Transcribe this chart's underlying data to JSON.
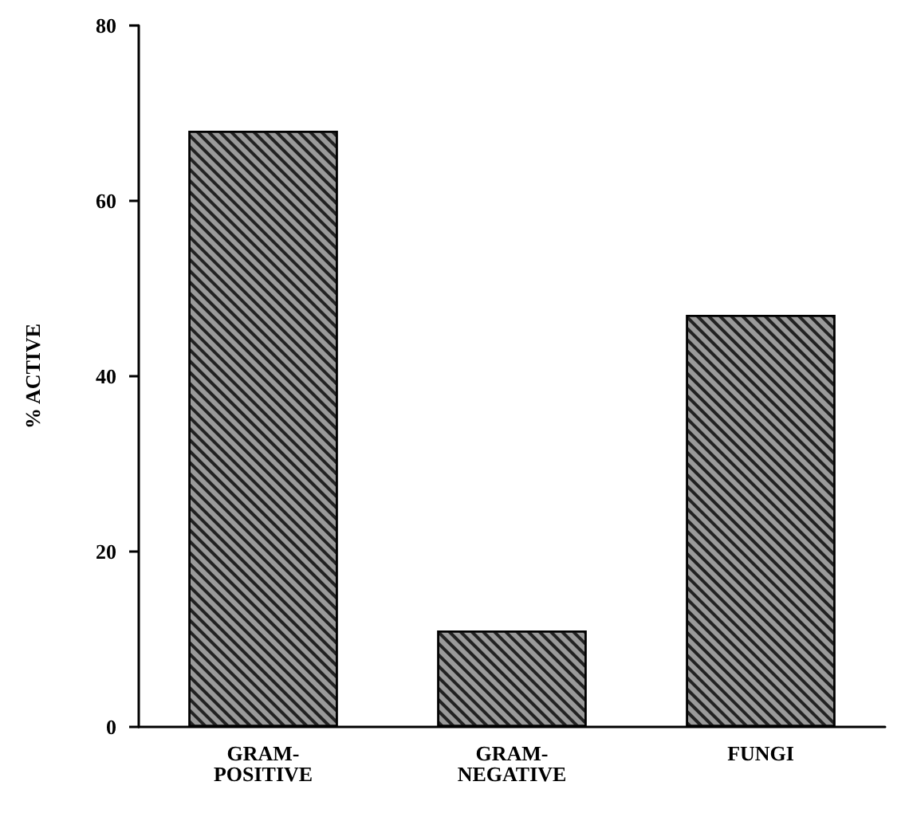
{
  "chart_data": {
    "type": "bar",
    "ylabel": "% ACTIVE",
    "categories": [
      "GRAM-POSITIVE",
      "GRAM-NEGATIVE",
      "FUNGI"
    ],
    "values": [
      68,
      11,
      47
    ],
    "color": "#9a9a9a",
    "ylim": [
      0,
      80
    ],
    "yticks": [
      0,
      20,
      40,
      60,
      80
    ],
    "grid": false
  }
}
